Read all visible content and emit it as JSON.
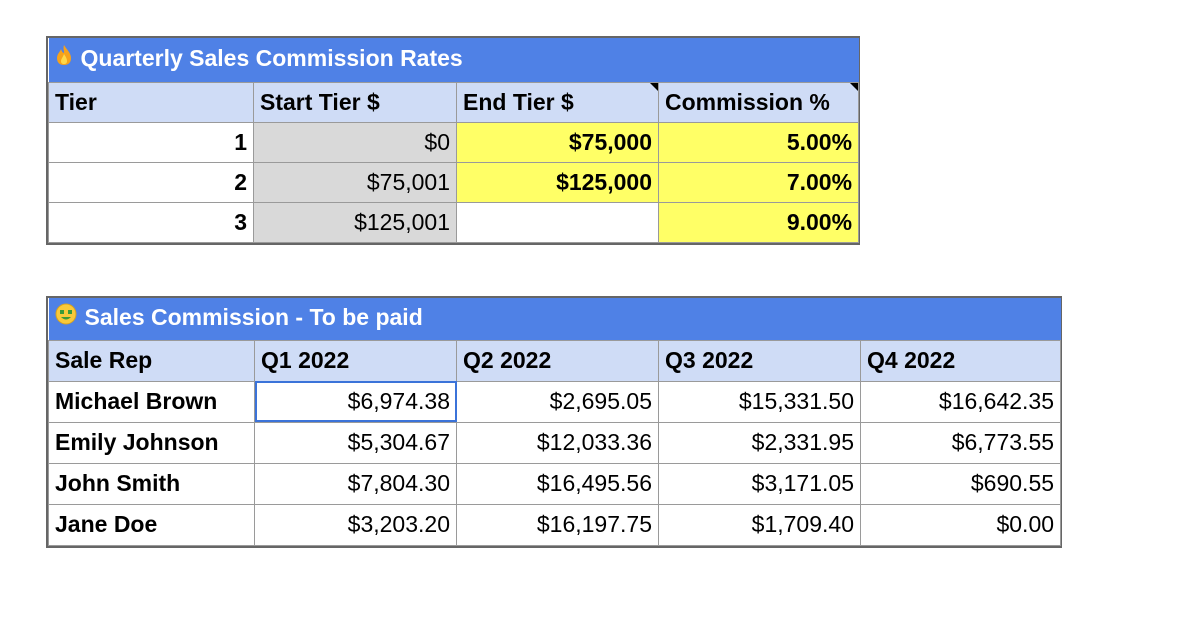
{
  "rates": {
    "title": "Quarterly Sales Commission Rates",
    "headers": [
      "Tier",
      "Start Tier $",
      "End Tier $",
      "Commission %"
    ],
    "rows": [
      {
        "tier": "1",
        "start": "$0",
        "end": "$75,000",
        "commission": "5.00%"
      },
      {
        "tier": "2",
        "start": "$75,001",
        "end": "$125,000",
        "commission": "7.00%"
      },
      {
        "tier": "3",
        "start": "$125,001",
        "end": "",
        "commission": "9.00%"
      }
    ]
  },
  "commission": {
    "title": "Sales Commission - To be paid",
    "headers": [
      "Sale Rep",
      "Q1 2022",
      "Q2 2022",
      "Q3 2022",
      "Q4 2022"
    ],
    "rows": [
      {
        "rep": "Michael Brown",
        "q1": "$6,974.38",
        "q2": "$2,695.05",
        "q3": "$15,331.50",
        "q4": "$16,642.35"
      },
      {
        "rep": "Emily Johnson",
        "q1": "$5,304.67",
        "q2": "$12,033.36",
        "q3": "$2,331.95",
        "q4": "$6,773.55"
      },
      {
        "rep": "John Smith",
        "q1": "$7,804.30",
        "q2": "$16,495.56",
        "q3": "$3,171.05",
        "q4": "$690.55"
      },
      {
        "rep": "Jane Doe",
        "q1": "$3,203.20",
        "q2": "$16,197.75",
        "q3": "$1,709.40",
        "q4": "$0.00"
      }
    ]
  },
  "colors": {
    "title_bar": "#4f81e6",
    "header_row": "#cfdcf6",
    "highlight_yellow": "#ffff66",
    "formula_gray": "#d9d9d9",
    "selection": "#3b73d9"
  },
  "icons": {
    "rates_title_icon": "fire-icon",
    "commission_title_icon": "money-mouth-face-icon"
  }
}
